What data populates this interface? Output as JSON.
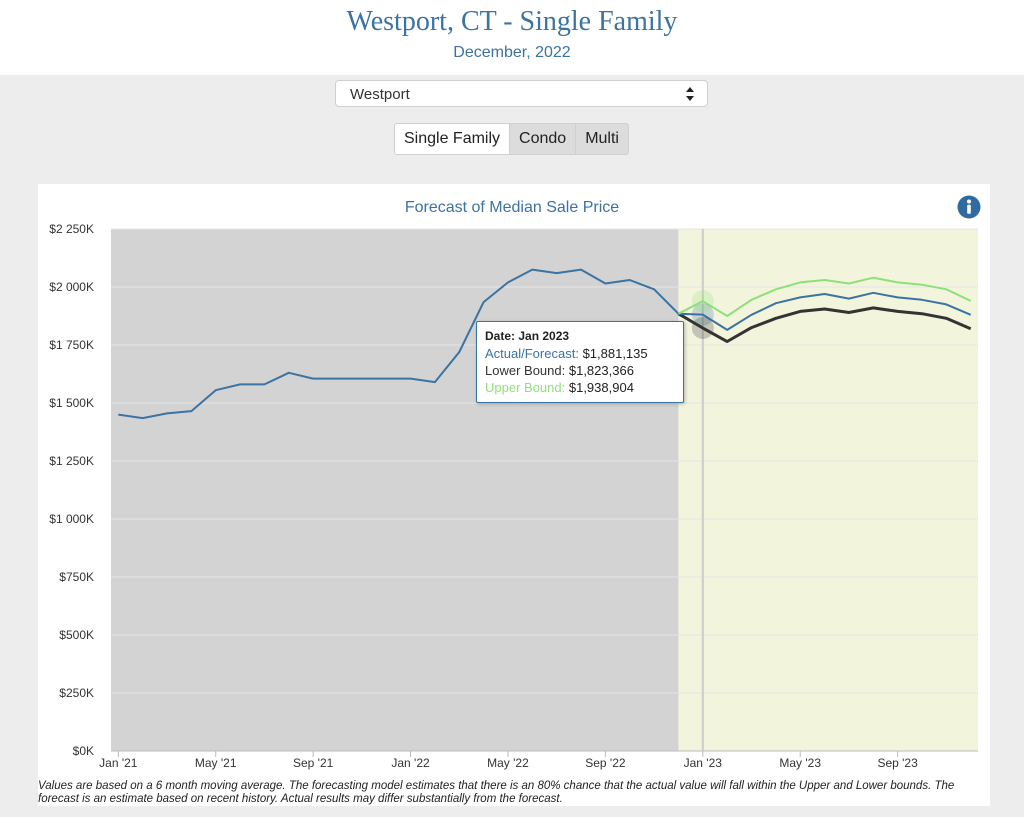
{
  "header": {
    "title": "Westport, CT - Single Family",
    "subtitle": "December, 2022"
  },
  "location_select": {
    "value": "Westport"
  },
  "property_types": [
    {
      "label": "Single Family",
      "active": true
    },
    {
      "label": "Condo",
      "active": false
    },
    {
      "label": "Multi",
      "active": false
    }
  ],
  "colors": {
    "actual": "#3b73a3",
    "lower": "#333333",
    "upper": "#8ee07a",
    "history_bg": "#d3d3d3",
    "forecast_bg": "#f3f4dc"
  },
  "chart_data": {
    "type": "line",
    "title": "Forecast of Median Sale Price",
    "xlabel": "",
    "ylabel": "",
    "ylim": [
      0,
      2250000
    ],
    "yticks": [
      0,
      250000,
      500000,
      750000,
      1000000,
      1250000,
      1500000,
      1750000,
      2000000,
      2250000
    ],
    "ytick_labels": [
      "$0K",
      "$250K",
      "$500K",
      "$750K",
      "$1 000K",
      "$1 250K",
      "$1 500K",
      "$1 750K",
      "$2 000K",
      "$2 250K"
    ],
    "xtick_labels": [
      {
        "label": "Jan '21",
        "index": 0
      },
      {
        "label": "May '21",
        "index": 4
      },
      {
        "label": "Sep '21",
        "index": 8
      },
      {
        "label": "Jan '22",
        "index": 12
      },
      {
        "label": "May '22",
        "index": 16
      },
      {
        "label": "Sep '22",
        "index": 20
      },
      {
        "label": "Jan '23",
        "index": 24
      },
      {
        "label": "May '23",
        "index": 28
      },
      {
        "label": "Sep '23",
        "index": 32
      }
    ],
    "x_range": [
      -0.3,
      35.3
    ],
    "forecast_start_index": 23,
    "highlight_index": 24,
    "series": [
      {
        "name": "Actual/Forecast",
        "start_index": 0,
        "values": [
          1450000,
          1435000,
          1455000,
          1465000,
          1555000,
          1580000,
          1580000,
          1630000,
          1605000,
          1605000,
          1605000,
          1605000,
          1605000,
          1590000,
          1720000,
          1935000,
          2020000,
          2075000,
          2060000,
          2075000,
          2015000,
          2030000,
          1990000,
          1885000,
          1881135,
          1815000,
          1880000,
          1930000,
          1955000,
          1970000,
          1950000,
          1975000,
          1955000,
          1945000,
          1925000,
          1880000
        ]
      },
      {
        "name": "Lower Bound",
        "start_index": 23,
        "values": [
          1885000,
          1823366,
          1765000,
          1825000,
          1865000,
          1895000,
          1905000,
          1890000,
          1910000,
          1895000,
          1885000,
          1865000,
          1820000
        ]
      },
      {
        "name": "Upper Bound",
        "start_index": 23,
        "values": [
          1885000,
          1938904,
          1875000,
          1945000,
          1990000,
          2020000,
          2030000,
          2015000,
          2040000,
          2020000,
          2010000,
          1990000,
          1940000
        ]
      }
    ],
    "tooltip": {
      "date": "Date: Jan 2023",
      "actual_label": "Actual/Forecast:",
      "actual_value": "$1,881,135",
      "lower_label": "Lower Bound:",
      "lower_value": "$1,823,366",
      "upper_label": "Upper Bound:",
      "upper_value": "$1,938,904"
    }
  },
  "footnote": "Values are based on a 6 month moving average. The forecasting model estimates that there is an 80% chance that the actual value will fall within the Upper and Lower bounds. The forecast is an estimate based on recent history. Actual results may differ substantially from the forecast."
}
